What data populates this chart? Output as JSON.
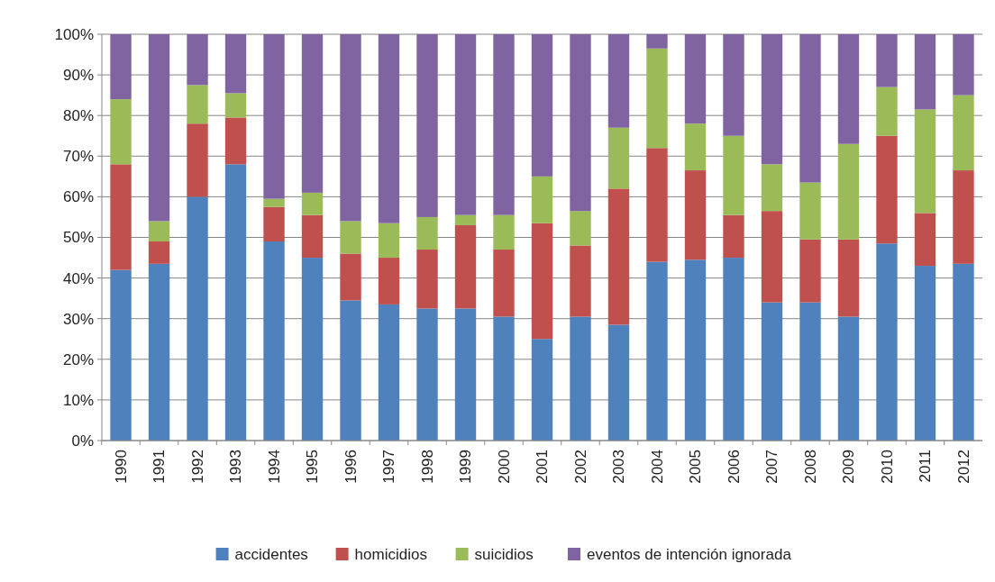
{
  "chart_data": {
    "type": "bar",
    "stacked": true,
    "categories": [
      "1990",
      "1991",
      "1992",
      "1993",
      "1994",
      "1995",
      "1996",
      "1997",
      "1998",
      "1999",
      "2000",
      "2001",
      "2002",
      "2003",
      "2004",
      "2005",
      "2006",
      "2007",
      "2008",
      "2009",
      "2010",
      "2011",
      "2012"
    ],
    "series": [
      {
        "name": "accidentes",
        "color": "#4f81bd",
        "values": [
          42,
          43.5,
          60,
          68,
          49,
          45,
          34.5,
          33.5,
          32.5,
          32.5,
          30.5,
          25,
          30.5,
          28.5,
          44,
          44.5,
          45,
          34,
          34,
          30.5,
          48.5,
          43,
          43.5
        ]
      },
      {
        "name": "homicidios",
        "color": "#c0504d",
        "values": [
          26,
          5.5,
          18,
          11.5,
          8.5,
          10.5,
          11.5,
          11.5,
          14.5,
          20.5,
          16.5,
          28.5,
          17.5,
          33.5,
          28,
          22,
          10.5,
          22.5,
          15.5,
          19,
          26.5,
          13,
          23
        ]
      },
      {
        "name": "suicidios",
        "color": "#9bbb59",
        "values": [
          16,
          5,
          9.5,
          6,
          2,
          5.5,
          8,
          8.5,
          8,
          2.5,
          8.5,
          11.5,
          8.5,
          15,
          24.5,
          11.5,
          19.5,
          11.5,
          14,
          23.5,
          12,
          25.5,
          18.5
        ]
      },
      {
        "name": "eventos de intención ignorada",
        "color": "#8064a2",
        "values": [
          16,
          46,
          12.5,
          14.5,
          40.5,
          39,
          46,
          46.5,
          45,
          44.5,
          44.5,
          35,
          43.5,
          23,
          3.5,
          22,
          25,
          32,
          36.5,
          27,
          13,
          18.5,
          15
        ]
      }
    ],
    "ylim": [
      0,
      100
    ],
    "yticks": [
      {
        "value": 0,
        "label": "0%"
      },
      {
        "value": 10,
        "label": "10%"
      },
      {
        "value": 20,
        "label": "20%"
      },
      {
        "value": 30,
        "label": "30%"
      },
      {
        "value": 40,
        "label": "40%"
      },
      {
        "value": 50,
        "label": "50%"
      },
      {
        "value": 60,
        "label": "60%"
      },
      {
        "value": 70,
        "label": "70%"
      },
      {
        "value": 80,
        "label": "80%"
      },
      {
        "value": 90,
        "label": "90%"
      },
      {
        "value": 100,
        "label": "100%"
      }
    ],
    "grid": "y",
    "legend": "bottom"
  }
}
